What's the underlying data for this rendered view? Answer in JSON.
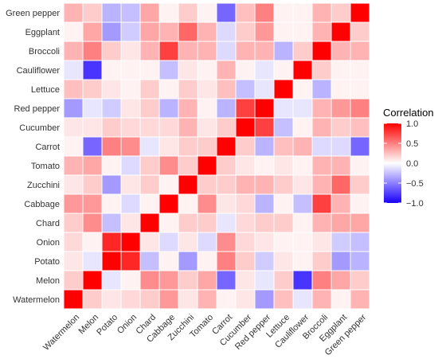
{
  "chart_data": {
    "type": "heatmap",
    "title": "",
    "xlabel": "",
    "ylabel": "",
    "x_categories": [
      "Watermelon",
      "Melon",
      "Potato",
      "Onion",
      "Chard",
      "Cabbage",
      "Zucchini",
      "Tomato",
      "Carrot",
      "Cucumber",
      "Red pepper",
      "Lettuce",
      "Cauliflower",
      "Broccoli",
      "Eggplant",
      "Green pepper"
    ],
    "y_categories": [
      "Watermelon",
      "Melon",
      "Potato",
      "Onion",
      "Chard",
      "Cabbage",
      "Zucchini",
      "Tomato",
      "Carrot",
      "Cucumber",
      "Red pepper",
      "Lettuce",
      "Cauliflower",
      "Broccoli",
      "Eggplant",
      "Green pepper"
    ],
    "values": [
      [
        1.0,
        0.2,
        0.1,
        0.15,
        0.2,
        0.4,
        0.1,
        0.3,
        0.05,
        0.1,
        -0.4,
        0.25,
        -0.1,
        0.3,
        0.05,
        0.3
      ],
      [
        0.2,
        1.0,
        -0.1,
        0.05,
        0.45,
        0.4,
        0.2,
        0.35,
        -0.6,
        0.1,
        -0.1,
        0.2,
        -0.8,
        0.5,
        0.35,
        0.2
      ],
      [
        0.1,
        -0.1,
        1.0,
        0.85,
        -0.25,
        0.05,
        -0.4,
        0.05,
        0.5,
        0.2,
        -0.2,
        0.1,
        0.05,
        0.2,
        -0.4,
        -0.3
      ],
      [
        0.15,
        0.05,
        0.85,
        1.0,
        0.1,
        -0.15,
        0.1,
        -0.15,
        0.45,
        0.15,
        0.1,
        0.05,
        0.05,
        0.1,
        -0.2,
        -0.25
      ],
      [
        0.2,
        0.45,
        -0.25,
        0.1,
        1.0,
        0.05,
        0.2,
        0.2,
        -0.1,
        0.15,
        0.2,
        0.2,
        0.05,
        0.3,
        0.35,
        0.35
      ],
      [
        0.4,
        0.4,
        0.05,
        -0.15,
        0.05,
        1.0,
        0.05,
        0.45,
        0.1,
        0.15,
        -0.3,
        0.05,
        -0.25,
        0.75,
        0.3,
        0.05
      ],
      [
        0.1,
        0.2,
        -0.4,
        0.1,
        0.2,
        0.05,
        1.0,
        0.2,
        0.2,
        0.3,
        0.3,
        0.2,
        0.1,
        0.3,
        0.6,
        0.2
      ],
      [
        0.3,
        0.35,
        0.05,
        -0.15,
        0.2,
        0.45,
        0.2,
        1.0,
        0.2,
        0.1,
        0.05,
        0.1,
        0.05,
        0.3,
        0.3,
        0.05
      ],
      [
        0.05,
        -0.6,
        0.5,
        0.45,
        -0.1,
        0.1,
        0.2,
        0.2,
        1.0,
        0.2,
        -0.3,
        0.25,
        0.3,
        -0.15,
        -0.15,
        -0.6
      ],
      [
        0.1,
        0.1,
        0.2,
        0.15,
        0.15,
        0.15,
        0.3,
        0.1,
        0.2,
        1.0,
        0.75,
        -0.25,
        0.05,
        0.3,
        0.2,
        0.25
      ],
      [
        -0.4,
        -0.1,
        -0.2,
        0.1,
        0.2,
        -0.3,
        0.3,
        0.05,
        -0.3,
        0.75,
        1.0,
        -0.1,
        -0.1,
        0.3,
        0.4,
        0.5
      ],
      [
        0.25,
        0.2,
        0.1,
        0.05,
        0.2,
        0.05,
        0.2,
        0.1,
        0.25,
        -0.25,
        -0.1,
        1.0,
        0.05,
        -0.3,
        0.05,
        0.05
      ],
      [
        -0.1,
        -0.8,
        0.05,
        0.05,
        0.05,
        -0.25,
        0.1,
        0.05,
        0.3,
        0.05,
        -0.1,
        0.05,
        1.0,
        0.2,
        0.05,
        0.05
      ],
      [
        0.3,
        0.5,
        0.2,
        0.1,
        0.3,
        0.75,
        0.3,
        0.3,
        -0.15,
        0.3,
        0.3,
        -0.3,
        0.2,
        1.0,
        0.3,
        0.3
      ],
      [
        0.05,
        0.35,
        -0.4,
        -0.2,
        0.35,
        0.3,
        0.6,
        0.3,
        -0.15,
        0.2,
        0.4,
        0.05,
        0.05,
        0.3,
        1.0,
        0.2
      ],
      [
        0.3,
        0.2,
        -0.3,
        -0.25,
        0.35,
        0.05,
        0.2,
        0.05,
        -0.6,
        0.25,
        0.5,
        0.05,
        0.05,
        0.3,
        0.2,
        1.0
      ]
    ],
    "color_scale": {
      "low": "#1a00ff",
      "mid": "#ffffff",
      "high": "#ff0000",
      "domain": [
        -1.0,
        1.0
      ]
    },
    "legend": {
      "title": "Correlation",
      "ticks": [
        "1.0",
        "0.5",
        "0.0",
        "−0.5",
        "−1.0"
      ],
      "tick_values": [
        1.0,
        0.5,
        0.0,
        -0.5,
        -1.0
      ],
      "placement": "right"
    }
  }
}
